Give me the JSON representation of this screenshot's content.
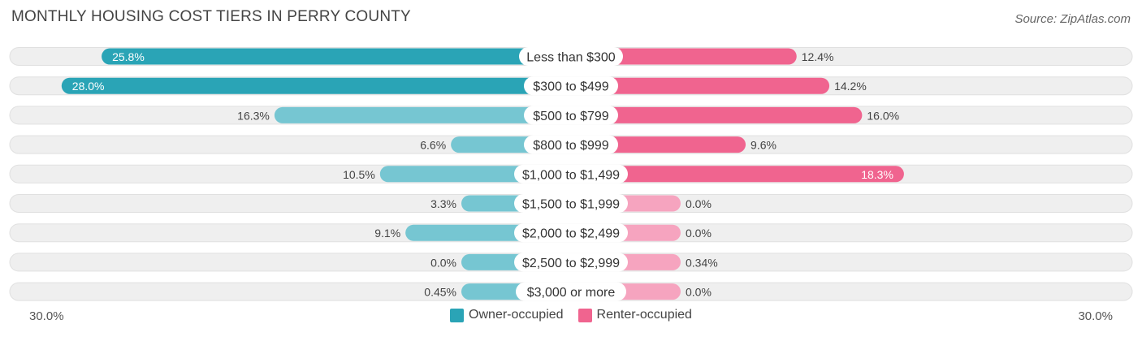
{
  "header": {
    "title": "MONTHLY HOUSING COST TIERS IN PERRY COUNTY",
    "source": "Source: ZipAtlas.com"
  },
  "axis": {
    "left_label": "30.0%",
    "right_label": "30.0%"
  },
  "legend": {
    "owner_label": "Owner-occupied",
    "renter_label": "Renter-occupied"
  },
  "colors": {
    "owner_strong": "#2aa4b6",
    "owner_light": "#76c6d2",
    "renter_strong": "#f0648f",
    "renter_light": "#f6a4bf",
    "track": "#efefef"
  },
  "chart_data": {
    "type": "bar",
    "orientation": "horizontal-diverging",
    "title": "MONTHLY HOUSING COST TIERS IN PERRY COUNTY",
    "categories": [
      "Less than $300",
      "$300 to $499",
      "$500 to $799",
      "$800 to $999",
      "$1,000 to $1,499",
      "$1,500 to $1,999",
      "$2,000 to $2,499",
      "$2,500 to $2,999",
      "$3,000 or more"
    ],
    "series": [
      {
        "name": "Owner-occupied",
        "values": [
          25.8,
          28.0,
          16.3,
          6.6,
          10.5,
          3.3,
          9.1,
          0.0,
          0.45
        ],
        "labels": [
          "25.8%",
          "28.0%",
          "16.3%",
          "6.6%",
          "10.5%",
          "3.3%",
          "9.1%",
          "0.0%",
          "0.45%"
        ]
      },
      {
        "name": "Renter-occupied",
        "values": [
          12.4,
          14.2,
          16.0,
          9.6,
          18.3,
          0.0,
          0.0,
          0.34,
          0.0
        ],
        "labels": [
          "12.4%",
          "14.2%",
          "16.0%",
          "9.6%",
          "18.3%",
          "0.0%",
          "0.0%",
          "0.34%",
          "0.0%"
        ]
      }
    ],
    "xlim": [
      -30,
      30
    ],
    "axis_labels": [
      "30.0%",
      "30.0%"
    ],
    "legend_position": "bottom-center"
  }
}
